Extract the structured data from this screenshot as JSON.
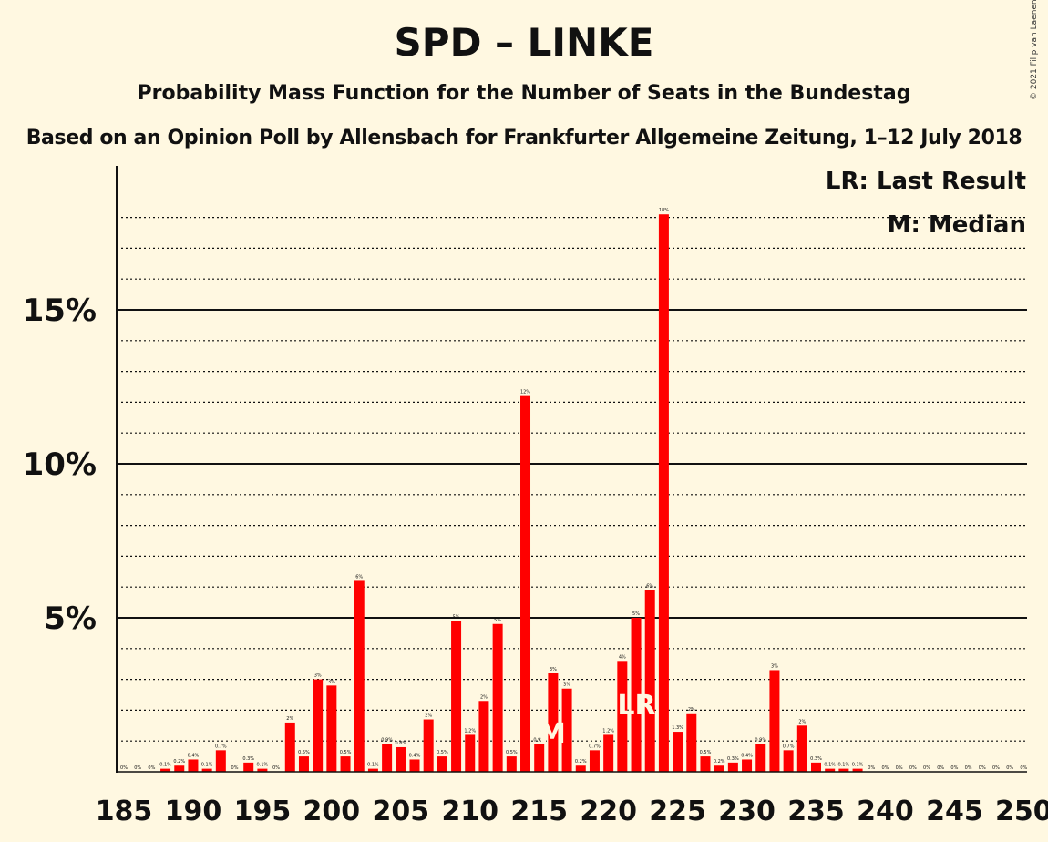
{
  "chart_data": {
    "type": "bar",
    "title": "SPD – LINKE",
    "subtitle": "Probability Mass Function for the Number of Seats in the Bundestag",
    "subtitle2": "Based on an Opinion Poll by Allensbach for Frankfurter Allgemeine Zeitung, 1–12 July 2018",
    "copyright": "© 2021 Filip van Laenen",
    "legend": {
      "last_result": "LR: Last Result",
      "median": "M: Median"
    },
    "bar_color": "#FF0000",
    "x": [
      185,
      186,
      187,
      188,
      189,
      190,
      191,
      192,
      193,
      194,
      195,
      196,
      197,
      198,
      199,
      200,
      201,
      202,
      203,
      204,
      205,
      206,
      207,
      208,
      209,
      210,
      211,
      212,
      213,
      214,
      215,
      216,
      217,
      218,
      219,
      220,
      221,
      222,
      223,
      224,
      225,
      226,
      227,
      228,
      229,
      230,
      231,
      232,
      233,
      234,
      235,
      236,
      237,
      238,
      239,
      240,
      241,
      242,
      243,
      244,
      245,
      246,
      247,
      248,
      249,
      250
    ],
    "values": [
      0,
      0,
      0,
      0.1,
      0.2,
      0.4,
      0.1,
      0.7,
      0,
      0.3,
      0.1,
      0,
      1.6,
      0.5,
      3.0,
      2.8,
      0.5,
      6.2,
      0.1,
      0.9,
      0.8,
      0.4,
      1.7,
      0.5,
      4.9,
      1.2,
      2.3,
      4.8,
      0.5,
      12.2,
      0.9,
      3.2,
      2.7,
      0.2,
      0.7,
      1.2,
      3.6,
      5.0,
      5.9,
      18.1,
      1.3,
      1.9,
      0.5,
      0.2,
      0.3,
      0.4,
      0.9,
      3.3,
      0.7,
      1.5,
      0.3,
      0.1,
      0.1,
      0.1,
      0,
      0,
      0,
      0,
      0,
      0,
      0,
      0,
      0,
      0,
      0,
      0
    ],
    "labels": [
      "0%",
      "0%",
      "0%",
      "0.1%",
      "0.2%",
      "0.4%",
      "0.1%",
      "0.7%",
      "0%",
      "0.3%",
      "0.1%",
      "0%",
      "2%",
      "0.5%",
      "3%",
      "3%",
      "0.5%",
      "6%",
      "0.1%",
      "0.9%",
      "0.8%",
      "0.4%",
      "2%",
      "0.5%",
      "5%",
      "1.2%",
      "2%",
      "5%",
      "0.5%",
      "12%",
      "0.9%",
      "3%",
      "3%",
      "0.2%",
      "0.7%",
      "1.2%",
      "4%",
      "5%",
      "6%",
      "18%",
      "1.3%",
      "2%",
      "0.5%",
      "0.2%",
      "0.3%",
      "0.4%",
      "0.9%",
      "3%",
      "0.7%",
      "2%",
      "0.3%",
      "0.1%",
      "0.1%",
      "0.1%",
      "0%",
      "0%",
      "0%",
      "0%",
      "0%",
      "0%",
      "0%",
      "0%",
      "0%",
      "0%",
      "0%",
      "0%"
    ],
    "x_ticks": [
      185,
      190,
      195,
      200,
      205,
      210,
      215,
      220,
      225,
      230,
      235,
      240,
      245,
      250
    ],
    "y_ticks": [
      5,
      10,
      15
    ],
    "y_tick_labels": [
      "5%",
      "10%",
      "15%"
    ],
    "ylim": [
      0,
      19.5
    ],
    "grid_dotted_step": 1,
    "median": 216,
    "median_label": "M",
    "last_result": 222,
    "last_result_label": "LR"
  }
}
